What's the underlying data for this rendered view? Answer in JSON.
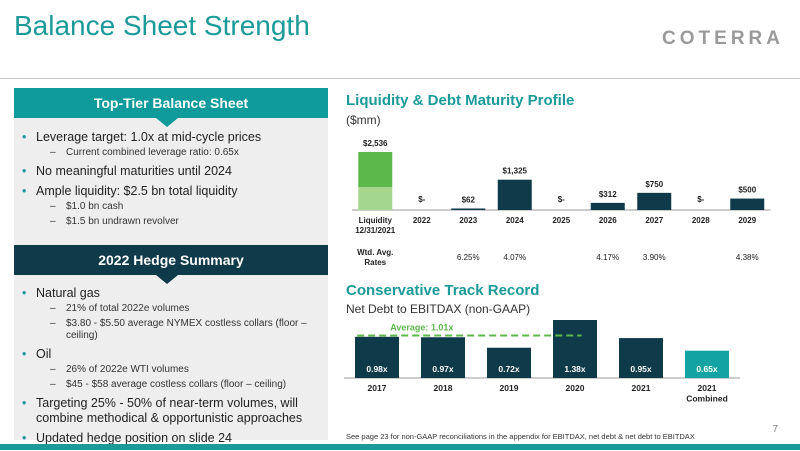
{
  "slide": {
    "title": "Balance Sheet Strength",
    "logo": "COTERRA",
    "page_number": "7",
    "footnote": "See page 23 for non-GAAP reconciliations in the appendix for EBITDAX, net debt & net debt to EBITDAX"
  },
  "left_panel": {
    "section1": {
      "header": "Top-Tier Balance Sheet",
      "bullets": [
        {
          "text": "Leverage target: 1.0x at mid-cycle prices",
          "subs": [
            "Current combined leverage ratio: 0.65x"
          ]
        },
        {
          "text": "No meaningful maturities until 2024",
          "subs": []
        },
        {
          "text": "Ample liquidity: $2.5 bn total liquidity",
          "subs": [
            "$1.0 bn cash",
            "$1.5 bn undrawn revolver"
          ]
        }
      ]
    },
    "section2": {
      "header": "2022 Hedge Summary",
      "bullets": [
        {
          "text": "Natural gas",
          "subs": [
            "21% of total 2022e volumes",
            "$3.80 - $5.50 average NYMEX costless collars (floor – ceiling)"
          ]
        },
        {
          "text": "Oil",
          "subs": [
            "26% of 2022e WTI volumes",
            "$45 - $58 average costless collars (floor – ceiling)"
          ]
        },
        {
          "text": "Targeting 25% - 50% of near-term volumes, will combine methodical & opportunistic approaches",
          "subs": []
        },
        {
          "text": "Updated hedge position on slide 24",
          "subs": []
        }
      ]
    }
  },
  "colors": {
    "teal": "#1c9a9a",
    "navy": "#0e3a4a",
    "green_dark": "#5cb84a",
    "green_light": "#a5d68e",
    "dash_green": "#5cb84a",
    "teal_bar": "#14a3a3"
  },
  "chart_data": [
    {
      "type": "bar",
      "title": "Liquidity & Debt Maturity Profile",
      "subtitle": "($mm)",
      "categories": [
        "Liquidity\n12/31/2021",
        "2022",
        "2023",
        "2024",
        "2025",
        "2026",
        "2027",
        "2028",
        "2029"
      ],
      "values": [
        2536,
        0,
        62,
        1325,
        0,
        312,
        750,
        0,
        500
      ],
      "value_labels": [
        "$2,536",
        "$-",
        "$62",
        "$1,325",
        "$-",
        "$312",
        "$750",
        "$-",
        "$500"
      ],
      "liquidity_breakdown": {
        "cash": 1000,
        "undrawn_revolver": 1536
      },
      "row_label": "Wtd. Avg.\nRates",
      "rates": [
        "",
        "",
        "6.25%",
        "4.07%",
        "",
        "4.17%",
        "3.90%",
        "",
        "4.38%"
      ]
    },
    {
      "type": "bar",
      "title": "Conservative Track Record",
      "subtitle": "Net Debt to EBITDAX (non-GAAP)",
      "categories": [
        "2017",
        "2018",
        "2019",
        "2020",
        "2021",
        "2021\nCombined"
      ],
      "values": [
        0.98,
        0.97,
        0.72,
        1.38,
        0.95,
        0.65
      ],
      "value_labels": [
        "0.98x",
        "0.97x",
        "0.72x",
        "1.38x",
        "0.95x",
        "0.65x"
      ],
      "average_label": "Average: 1.01x",
      "average": 1.01
    }
  ]
}
